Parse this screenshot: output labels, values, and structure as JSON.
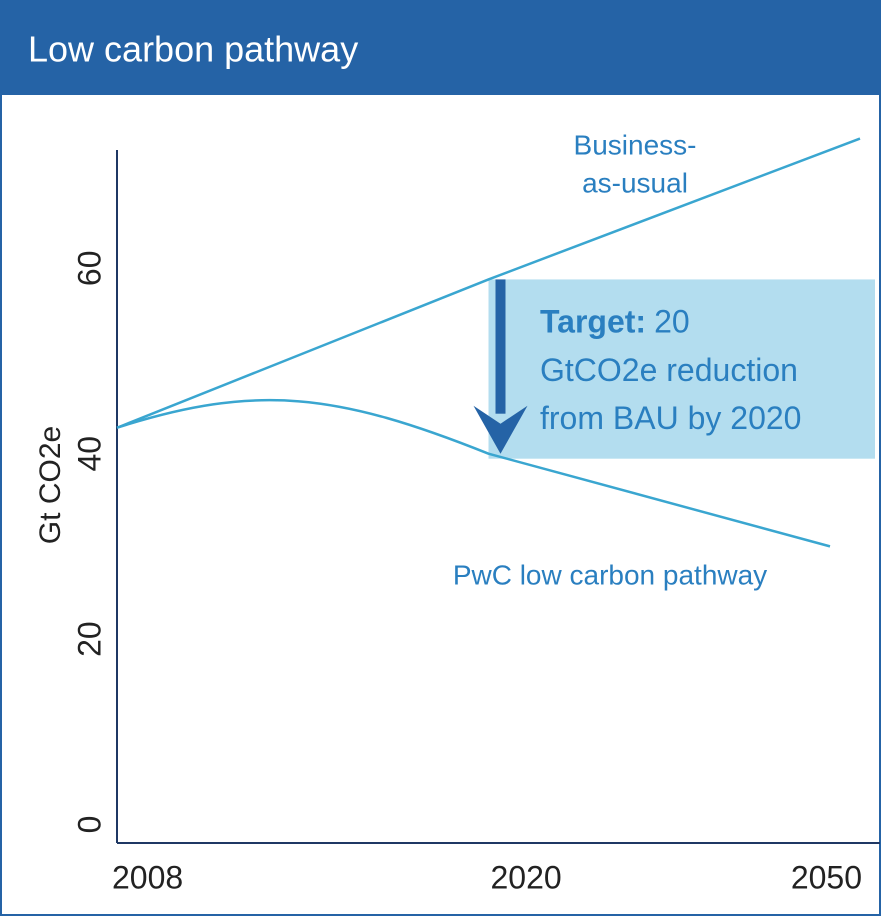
{
  "chart_data": {
    "type": "line",
    "title": "Low carbon pathway",
    "ylabel": "Gt CO2e",
    "categories": [
      "2008",
      "2020",
      "2050"
    ],
    "series": [
      {
        "name": [
          "Business-",
          "as-usual"
        ],
        "color": "#3aa6d0",
        "values": [
          42.8,
          58.8,
          74
        ]
      },
      {
        "name": [
          "PwC low carbon pathway"
        ],
        "color": "#3aa6d0",
        "values": [
          42.8,
          40,
          30
        ]
      }
    ],
    "ylim": [
      -2,
      76
    ],
    "yticks": [
      0,
      20,
      40,
      60
    ],
    "annotation": {
      "bold": "Target:",
      "lines": [
        "20",
        "GtCO2e reduction",
        "from BAU by 2020"
      ]
    },
    "header_color": "#2563a6",
    "arrow_color": "#2563a6",
    "box_color": "#b3ddef",
    "label_color": "#2a7fc0"
  }
}
